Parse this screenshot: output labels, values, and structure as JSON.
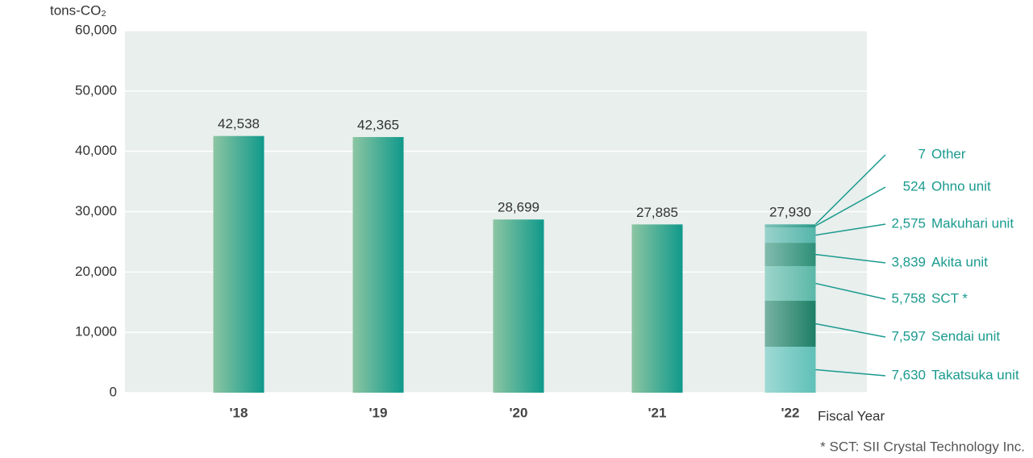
{
  "chart_data": {
    "type": "bar",
    "y_label": "tons-CO₂",
    "x_label": "Fiscal Year",
    "footnote": "* SCT: SII Crystal Technology Inc.",
    "categories": [
      "'18",
      "'19",
      "'20",
      "'21",
      "'22"
    ],
    "values": [
      42538,
      42365,
      28699,
      27885,
      27930
    ],
    "value_labels": [
      "42,538",
      "42,365",
      "28,699",
      "27,885",
      "27,930"
    ],
    "colors": [
      "#8cc5a2",
      "#0f998b"
    ],
    "breakdown": [
      {
        "name": "Takatsuka unit",
        "value": 7630,
        "value_label": "7,630",
        "color": "#5fc0b8"
      },
      {
        "name": "Sendai unit",
        "value": 7597,
        "value_label": "7,597",
        "color": "#1e7f66"
      },
      {
        "name": "SCT *",
        "value": 5758,
        "value_label": "5,758",
        "color": "#5bb8a8"
      },
      {
        "name": "Akita unit",
        "value": 3839,
        "value_label": "3,839",
        "color": "#2e8f78"
      },
      {
        "name": "Makuhari unit",
        "value": 2575,
        "value_label": "2,575",
        "color": "#55b5aa"
      },
      {
        "name": "Ohno unit",
        "value": 524,
        "value_label": "524",
        "color": "#2a9a8a"
      },
      {
        "name": "Other",
        "value": 7,
        "value_label": "7",
        "color": "#7fc6b8"
      }
    ],
    "ylim": [
      0,
      60000
    ],
    "yticks": [
      0,
      {
        "value": 10000,
        "label": "10,000"
      },
      {
        "value": 20000,
        "label": "20,000"
      },
      {
        "value": 30000,
        "label": "30,000"
      },
      {
        "value": 40000,
        "label": "40,000"
      },
      {
        "value": 50000,
        "label": "50,000"
      },
      {
        "value": 60000,
        "label": "60,000"
      }
    ],
    "grid": true
  }
}
